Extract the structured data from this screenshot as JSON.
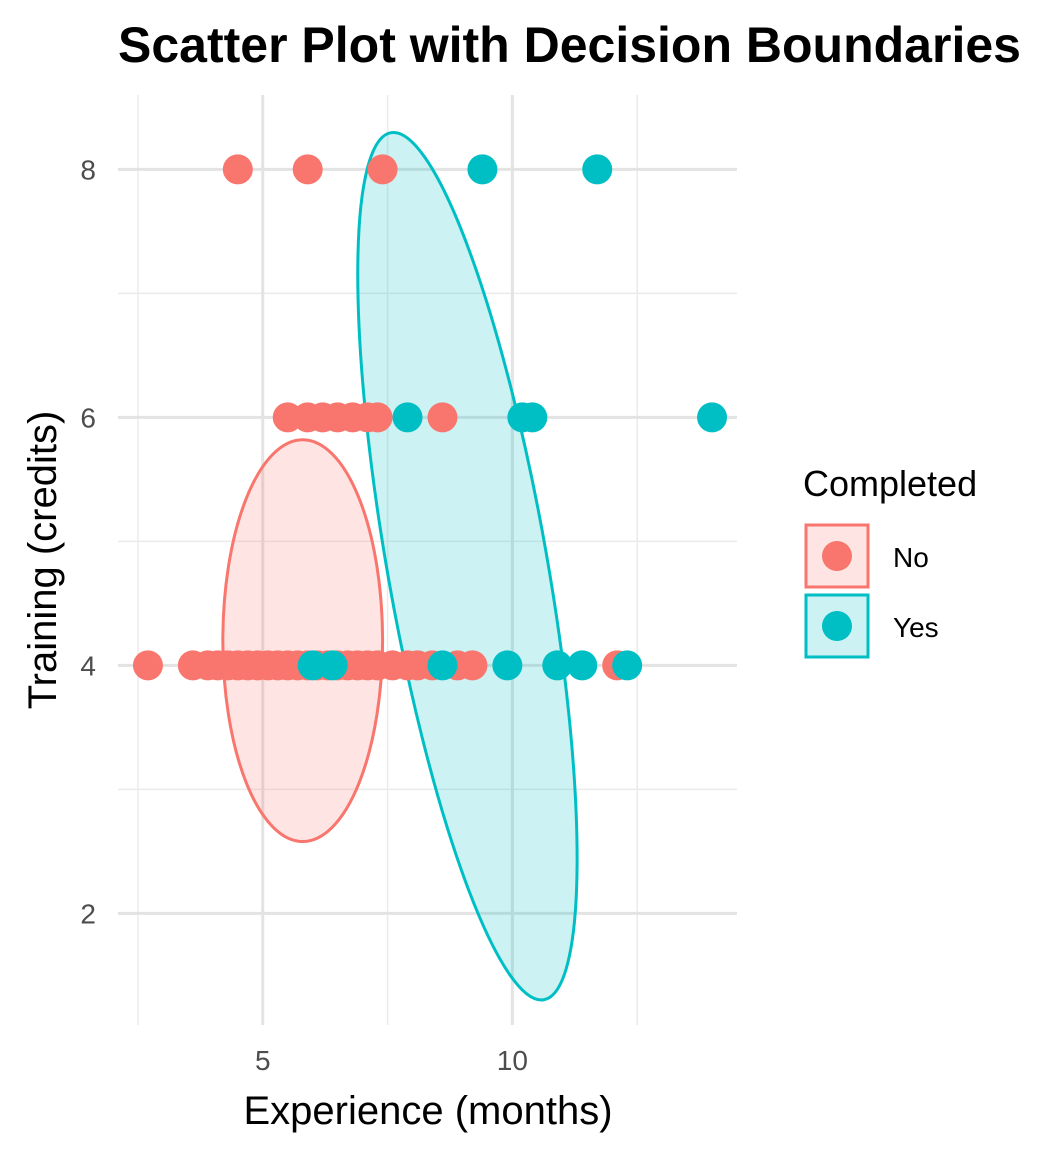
{
  "chart_data": {
    "type": "scatter",
    "title": "Scatter Plot with Decision Boundaries",
    "xlabel": "Experience (months)",
    "ylabel": "Training (credits)",
    "xlim": [
      2.1,
      14.5
    ],
    "ylim": [
      1.1,
      8.6
    ],
    "x_ticks": [
      5,
      10
    ],
    "y_ticks": [
      2,
      4,
      6,
      8
    ],
    "grid": true,
    "legend": {
      "title": "Completed",
      "position": "right"
    },
    "series": [
      {
        "name": "No",
        "color": "#F8766D",
        "points": [
          {
            "x": 4.5,
            "y": 8
          },
          {
            "x": 5.9,
            "y": 8
          },
          {
            "x": 7.4,
            "y": 8
          },
          {
            "x": 5.5,
            "y": 6
          },
          {
            "x": 5.9,
            "y": 6
          },
          {
            "x": 6.2,
            "y": 6
          },
          {
            "x": 6.5,
            "y": 6
          },
          {
            "x": 6.8,
            "y": 6
          },
          {
            "x": 7.1,
            "y": 6
          },
          {
            "x": 7.3,
            "y": 6
          },
          {
            "x": 8.6,
            "y": 6
          },
          {
            "x": 2.7,
            "y": 4
          },
          {
            "x": 3.6,
            "y": 4
          },
          {
            "x": 3.9,
            "y": 4
          },
          {
            "x": 4.1,
            "y": 4
          },
          {
            "x": 4.3,
            "y": 4
          },
          {
            "x": 4.5,
            "y": 4
          },
          {
            "x": 4.7,
            "y": 4
          },
          {
            "x": 4.9,
            "y": 4
          },
          {
            "x": 5.1,
            "y": 4
          },
          {
            "x": 5.3,
            "y": 4
          },
          {
            "x": 5.5,
            "y": 4
          },
          {
            "x": 5.7,
            "y": 4
          },
          {
            "x": 5.9,
            "y": 4
          },
          {
            "x": 6.1,
            "y": 4
          },
          {
            "x": 6.3,
            "y": 4
          },
          {
            "x": 6.5,
            "y": 4
          },
          {
            "x": 6.7,
            "y": 4
          },
          {
            "x": 6.9,
            "y": 4
          },
          {
            "x": 7.1,
            "y": 4
          },
          {
            "x": 7.3,
            "y": 4
          },
          {
            "x": 7.6,
            "y": 4
          },
          {
            "x": 7.9,
            "y": 4
          },
          {
            "x": 8.1,
            "y": 4
          },
          {
            "x": 8.4,
            "y": 4
          },
          {
            "x": 8.9,
            "y": 4
          },
          {
            "x": 9.2,
            "y": 4
          },
          {
            "x": 12.1,
            "y": 4
          }
        ],
        "ellipse": {
          "cx": 5.8,
          "cy": 4.2,
          "rx": 3.2,
          "ry": 1.62
        }
      },
      {
        "name": "Yes",
        "color": "#00BFC4",
        "points": [
          {
            "x": 9.4,
            "y": 8
          },
          {
            "x": 11.7,
            "y": 8
          },
          {
            "x": 7.9,
            "y": 6
          },
          {
            "x": 10.2,
            "y": 6
          },
          {
            "x": 10.4,
            "y": 6
          },
          {
            "x": 14.0,
            "y": 6
          },
          {
            "x": 6.0,
            "y": 4
          },
          {
            "x": 6.4,
            "y": 4
          },
          {
            "x": 8.6,
            "y": 4
          },
          {
            "x": 9.9,
            "y": 4
          },
          {
            "x": 10.9,
            "y": 4
          },
          {
            "x": 11.4,
            "y": 4
          },
          {
            "x": 12.3,
            "y": 4
          }
        ],
        "ellipse": {
          "cx": 9.1,
          "cy": 4.8,
          "rx": 3.2,
          "ry": 3.55,
          "angle_deg": -10
        }
      }
    ]
  }
}
